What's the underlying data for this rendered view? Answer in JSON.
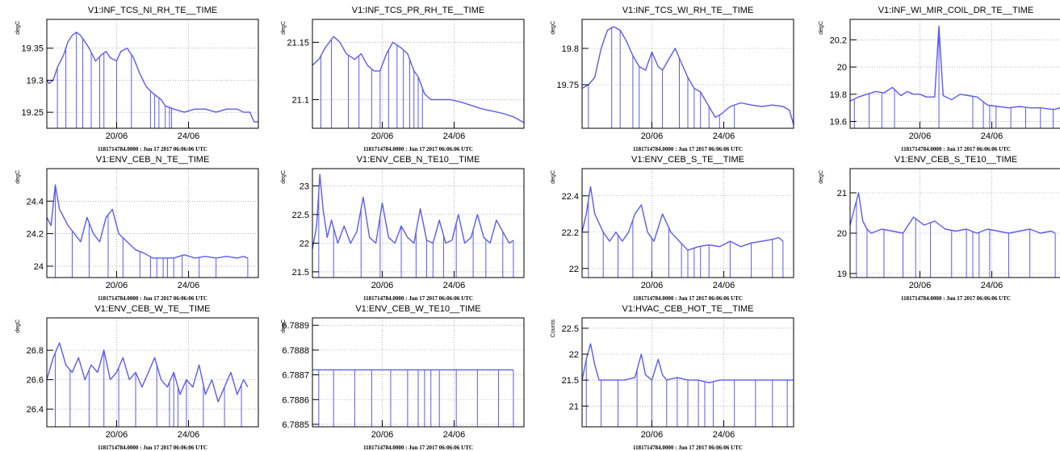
{
  "footer_text": "1181714784.0000 : Jun 17 2017 06:06:06 UTC",
  "series_color": "#5b5bf5",
  "x_tick_labels": [
    "20/06",
    "24/06"
  ],
  "chart_data": [
    {
      "type": "line",
      "title": "V1:INF_TCS_NI_RH_TE__TIME",
      "ylabel": "degC",
      "ylim": [
        19.225,
        19.395
      ],
      "yticks": [
        19.25,
        19.3,
        19.35
      ],
      "ytick_labels": [
        "19.25",
        "19.3",
        "19.35"
      ],
      "x": [
        0,
        0.01,
        0.03,
        0.05,
        0.08,
        0.1,
        0.12,
        0.14,
        0.16,
        0.18,
        0.2,
        0.23,
        0.26,
        0.28,
        0.3,
        0.33,
        0.35,
        0.38,
        0.41,
        0.44,
        0.47,
        0.5,
        0.52,
        0.54,
        0.56,
        0.6,
        0.65,
        0.7,
        0.75,
        0.8,
        0.85,
        0.9,
        0.93,
        0.96,
        0.98,
        1
      ],
      "y": [
        19.3,
        19.295,
        19.3,
        19.32,
        19.34,
        19.36,
        19.37,
        19.375,
        19.37,
        19.36,
        19.35,
        19.33,
        19.34,
        19.345,
        19.335,
        19.33,
        19.345,
        19.35,
        19.335,
        19.31,
        19.29,
        19.28,
        19.275,
        19.27,
        19.26,
        19.255,
        19.25,
        19.255,
        19.255,
        19.25,
        19.255,
        19.255,
        19.25,
        19.25,
        19.235,
        19.235
      ],
      "dropouts": [
        0.05,
        0.09,
        0.14,
        0.17,
        0.21,
        0.25,
        0.27,
        0.33,
        0.4,
        0.49,
        0.51,
        0.53,
        0.56,
        0.58,
        0.59
      ]
    },
    {
      "type": "line",
      "title": "V1:INF_TCS_PR_RH_TE__TIME",
      "ylabel": "degC",
      "ylim": [
        21.075,
        21.17
      ],
      "yticks": [
        21.1,
        21.15
      ],
      "ytick_labels": [
        "21.1",
        "21.15"
      ],
      "x": [
        0,
        0.03,
        0.06,
        0.1,
        0.13,
        0.16,
        0.2,
        0.23,
        0.26,
        0.29,
        0.32,
        0.35,
        0.38,
        0.42,
        0.45,
        0.48,
        0.5,
        0.53,
        0.56,
        0.6,
        0.65,
        0.7,
        0.75,
        0.8,
        0.85,
        0.9,
        0.95,
        0.98,
        1
      ],
      "y": [
        21.13,
        21.135,
        21.145,
        21.155,
        21.15,
        21.14,
        21.135,
        21.14,
        21.13,
        21.125,
        21.125,
        21.14,
        21.15,
        21.145,
        21.14,
        21.125,
        21.12,
        21.105,
        21.1,
        21.1,
        21.1,
        21.098,
        21.095,
        21.092,
        21.09,
        21.088,
        21.085,
        21.082,
        21.08
      ],
      "dropouts": [
        0.04,
        0.09,
        0.17,
        0.22,
        0.28,
        0.32,
        0.36,
        0.4,
        0.43,
        0.46,
        0.48,
        0.5,
        0.52
      ]
    },
    {
      "type": "line",
      "title": "V1:INF_TCS_WI_RH_TE__TIME",
      "ylabel": "degC",
      "ylim": [
        19.69,
        19.84
      ],
      "yticks": [
        19.75,
        19.8
      ],
      "ytick_labels": [
        "19.75",
        "19.8"
      ],
      "x": [
        0,
        0.03,
        0.06,
        0.09,
        0.12,
        0.15,
        0.18,
        0.21,
        0.24,
        0.27,
        0.3,
        0.33,
        0.36,
        0.38,
        0.41,
        0.44,
        0.47,
        0.5,
        0.53,
        0.56,
        0.6,
        0.63,
        0.66,
        0.7,
        0.75,
        0.8,
        0.85,
        0.9,
        0.95,
        0.98,
        1
      ],
      "y": [
        19.745,
        19.75,
        19.76,
        19.8,
        19.825,
        19.83,
        19.825,
        19.81,
        19.79,
        19.775,
        19.77,
        19.795,
        19.775,
        19.77,
        19.785,
        19.8,
        19.78,
        19.76,
        19.745,
        19.74,
        19.72,
        19.705,
        19.71,
        19.72,
        19.725,
        19.722,
        19.72,
        19.722,
        19.72,
        19.715,
        19.695
      ],
      "dropouts": [
        0.03,
        0.14,
        0.18,
        0.24,
        0.27,
        0.33,
        0.38,
        0.46,
        0.5,
        0.53,
        0.56,
        0.6,
        0.65,
        0.72
      ]
    },
    {
      "type": "line",
      "title": "V1:INF_WI_MIR_COIL_DR_TE__TIME",
      "ylabel": "degC",
      "ylim": [
        19.55,
        20.35
      ],
      "yticks": [
        19.6,
        19.8,
        20,
        20.2
      ],
      "ytick_labels": [
        "19.6",
        "19.8",
        "20",
        "20.2"
      ],
      "x": [
        0,
        0.04,
        0.08,
        0.12,
        0.16,
        0.2,
        0.24,
        0.27,
        0.3,
        0.33,
        0.36,
        0.4,
        0.42,
        0.44,
        0.48,
        0.52,
        0.56,
        0.6,
        0.65,
        0.7,
        0.75,
        0.8,
        0.85,
        0.9,
        0.95,
        0.97,
        0.99,
        1
      ],
      "y": [
        19.75,
        19.78,
        19.8,
        19.82,
        19.81,
        19.85,
        19.79,
        19.82,
        19.8,
        19.8,
        19.78,
        19.78,
        20.3,
        19.79,
        19.76,
        19.8,
        19.79,
        19.78,
        19.72,
        19.71,
        19.7,
        19.71,
        19.7,
        19.7,
        19.69,
        19.69,
        19.7,
        19.68
      ],
      "dropouts": [
        0.02,
        0.09,
        0.15,
        0.21,
        0.42,
        0.58,
        0.63,
        0.66,
        0.69,
        0.76,
        0.83,
        0.9,
        0.96
      ]
    },
    {
      "type": "line",
      "title": "V1:ENV_CEB_N_TE__TIME",
      "ylabel": "degC",
      "ylim": [
        23.93,
        24.6
      ],
      "yticks": [
        24,
        24.2,
        24.4
      ],
      "ytick_labels": [
        "24",
        "24.2",
        "24.4"
      ],
      "x": [
        0,
        0.02,
        0.04,
        0.06,
        0.08,
        0.1,
        0.13,
        0.16,
        0.19,
        0.22,
        0.25,
        0.28,
        0.31,
        0.34,
        0.38,
        0.42,
        0.46,
        0.5,
        0.55,
        0.6,
        0.65,
        0.7,
        0.75,
        0.8,
        0.85,
        0.9,
        0.93,
        0.95
      ],
      "y": [
        24.3,
        24.25,
        24.5,
        24.35,
        24.3,
        24.25,
        24.2,
        24.15,
        24.3,
        24.2,
        24.15,
        24.3,
        24.35,
        24.2,
        24.15,
        24.1,
        24.08,
        24.05,
        24.05,
        24.05,
        24.07,
        24.05,
        24.06,
        24.05,
        24.06,
        24.05,
        24.06,
        24.05
      ],
      "dropouts": [
        0.04,
        0.12,
        0.2,
        0.29,
        0.36,
        0.44,
        0.49,
        0.52,
        0.55,
        0.57,
        0.6,
        0.64,
        0.72,
        0.8,
        0.95
      ]
    },
    {
      "type": "line",
      "title": "V1:ENV_CEB_N_TE10__TIME",
      "ylabel": "degC",
      "ylim": [
        21.4,
        23.3
      ],
      "yticks": [
        21.5,
        22,
        22.5,
        23
      ],
      "ytick_labels": [
        "21.5",
        "22",
        "22.5",
        "23"
      ],
      "x": [
        0,
        0.02,
        0.035,
        0.05,
        0.07,
        0.09,
        0.12,
        0.15,
        0.18,
        0.21,
        0.24,
        0.27,
        0.3,
        0.33,
        0.36,
        0.39,
        0.42,
        0.45,
        0.48,
        0.51,
        0.54,
        0.57,
        0.6,
        0.63,
        0.66,
        0.69,
        0.72,
        0.75,
        0.78,
        0.81,
        0.84,
        0.87,
        0.9,
        0.93,
        0.95
      ],
      "y": [
        21.9,
        22.3,
        23.2,
        22.6,
        22.1,
        22.4,
        22.0,
        22.3,
        22.0,
        22.2,
        22.8,
        22.1,
        22.0,
        22.7,
        22.1,
        22.0,
        22.3,
        22.1,
        22.0,
        22.6,
        22.05,
        22.0,
        22.4,
        22.0,
        22.05,
        22.5,
        22.0,
        22.1,
        22.5,
        22.1,
        22.0,
        22.4,
        22.2,
        22.0,
        22.05
      ],
      "dropouts": [
        0.03,
        0.1,
        0.23,
        0.32,
        0.42,
        0.49,
        0.54,
        0.57,
        0.62,
        0.68,
        0.76,
        0.82,
        0.9,
        0.95
      ]
    },
    {
      "type": "line",
      "title": "V1:ENV_CEB_S_TE__TIME",
      "ylabel": "degC",
      "ylim": [
        21.95,
        22.55
      ],
      "yticks": [
        22,
        22.2,
        22.4
      ],
      "ytick_labels": [
        "22",
        "22.2",
        "22.4"
      ],
      "x": [
        0,
        0.02,
        0.04,
        0.06,
        0.08,
        0.1,
        0.13,
        0.16,
        0.19,
        0.22,
        0.25,
        0.28,
        0.31,
        0.34,
        0.38,
        0.42,
        0.46,
        0.5,
        0.55,
        0.6,
        0.65,
        0.7,
        0.75,
        0.8,
        0.85,
        0.9,
        0.93,
        0.95
      ],
      "y": [
        22.2,
        22.3,
        22.45,
        22.3,
        22.25,
        22.2,
        22.15,
        22.2,
        22.15,
        22.2,
        22.3,
        22.35,
        22.2,
        22.15,
        22.3,
        22.2,
        22.15,
        22.1,
        22.12,
        22.13,
        22.12,
        22.15,
        22.12,
        22.14,
        22.15,
        22.16,
        22.17,
        22.15
      ],
      "dropouts": [
        0.03,
        0.1,
        0.17,
        0.24,
        0.33,
        0.41,
        0.47,
        0.5,
        0.53,
        0.56,
        0.6,
        0.7,
        0.8,
        0.9,
        0.95
      ]
    },
    {
      "type": "line",
      "title": "V1:ENV_CEB_S_TE10__TIME",
      "ylabel": "degC",
      "ylim": [
        18.9,
        21.6
      ],
      "yticks": [
        19,
        20,
        21
      ],
      "ytick_labels": [
        "19",
        "20",
        "21"
      ],
      "x": [
        0,
        0.02,
        0.04,
        0.06,
        0.08,
        0.1,
        0.15,
        0.2,
        0.25,
        0.3,
        0.35,
        0.4,
        0.45,
        0.5,
        0.55,
        0.6,
        0.65,
        0.7,
        0.75,
        0.8,
        0.85,
        0.9,
        0.95,
        0.97
      ],
      "y": [
        20.2,
        20.6,
        21.0,
        20.3,
        20.1,
        20.0,
        20.1,
        20.05,
        20.0,
        20.4,
        20.2,
        20.3,
        20.1,
        20.05,
        20.1,
        20.0,
        20.1,
        20.05,
        20.0,
        20.05,
        20.1,
        20.0,
        20.05,
        20.0
      ],
      "dropouts": [
        0.03,
        0.08,
        0.16,
        0.25,
        0.31,
        0.38,
        0.48,
        0.55,
        0.58,
        0.61,
        0.66,
        0.75,
        0.85,
        0.97
      ]
    },
    {
      "type": "line",
      "title": "V1:ENV_CEB_W_TE__TIME",
      "ylabel": "degC",
      "ylim": [
        26.28,
        27.02
      ],
      "yticks": [
        26.4,
        26.6,
        26.8
      ],
      "ytick_labels": [
        "26.4",
        "26.6",
        "26.8"
      ],
      "x": [
        0,
        0.03,
        0.06,
        0.09,
        0.12,
        0.15,
        0.18,
        0.21,
        0.24,
        0.27,
        0.3,
        0.33,
        0.36,
        0.39,
        0.42,
        0.45,
        0.48,
        0.51,
        0.54,
        0.57,
        0.6,
        0.63,
        0.66,
        0.69,
        0.72,
        0.75,
        0.78,
        0.81,
        0.84,
        0.87,
        0.9,
        0.93,
        0.95
      ],
      "y": [
        26.6,
        26.75,
        26.85,
        26.7,
        26.65,
        26.75,
        26.6,
        26.7,
        26.65,
        26.8,
        26.6,
        26.65,
        26.75,
        26.6,
        26.65,
        26.55,
        26.65,
        26.75,
        26.6,
        26.55,
        26.65,
        26.5,
        26.6,
        26.55,
        26.7,
        26.5,
        26.6,
        26.45,
        26.55,
        26.65,
        26.5,
        26.6,
        26.55
      ],
      "dropouts": [
        0.04,
        0.11,
        0.2,
        0.27,
        0.34,
        0.42,
        0.52,
        0.58,
        0.6,
        0.62,
        0.66,
        0.74,
        0.84,
        0.92
      ]
    },
    {
      "type": "line",
      "title": "V1:ENV_CEB_W_TE10__TIME",
      "ylabel": "degC",
      "ylim": [
        6.78849,
        6.78893
      ],
      "yticks": [
        6.7885,
        6.7886,
        6.7887,
        6.7888,
        6.7889
      ],
      "ytick_labels": [
        "6.7885",
        "6.7886",
        "6.7887",
        "6.7888",
        "6.7889"
      ],
      "x": [
        0,
        0.95
      ],
      "y": [
        6.78872,
        6.78872
      ],
      "dropouts": [
        0.03,
        0.1,
        0.2,
        0.28,
        0.37,
        0.45,
        0.5,
        0.53,
        0.56,
        0.6,
        0.68,
        0.78,
        0.88,
        0.95
      ]
    },
    {
      "type": "line",
      "title": "V1:HVAC_CEB_HOT_TE__TIME",
      "ylabel": "Counts",
      "ylim": [
        20.6,
        22.7
      ],
      "yticks": [
        21,
        21.5,
        22,
        22.5
      ],
      "ytick_labels": [
        "21",
        "21.5",
        "22",
        "22.5"
      ],
      "x": [
        0,
        0.02,
        0.04,
        0.06,
        0.08,
        0.1,
        0.15,
        0.2,
        0.25,
        0.28,
        0.3,
        0.33,
        0.36,
        0.38,
        0.4,
        0.45,
        0.5,
        0.55,
        0.6,
        0.65,
        0.7,
        0.75,
        0.8,
        0.85,
        0.9,
        0.95,
        1
      ],
      "y": [
        21.5,
        21.9,
        22.2,
        21.8,
        21.5,
        21.5,
        21.5,
        21.5,
        21.55,
        22.0,
        21.6,
        21.5,
        21.9,
        21.6,
        21.5,
        21.55,
        21.5,
        21.5,
        21.45,
        21.5,
        21.5,
        21.5,
        21.5,
        21.5,
        21.5,
        21.5,
        21.5
      ],
      "dropouts": [
        0.02,
        0.09,
        0.17,
        0.26,
        0.33,
        0.4,
        0.45,
        0.5,
        0.55,
        0.58,
        0.62,
        0.72,
        0.82,
        0.9,
        0.97
      ]
    }
  ]
}
